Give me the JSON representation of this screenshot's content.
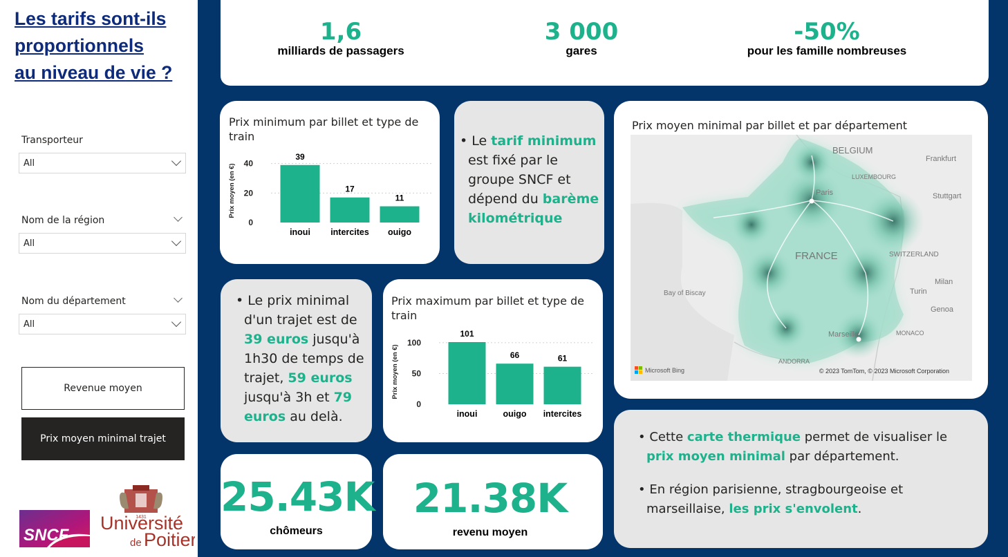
{
  "title_lines": [
    "Les tarifs sont-ils ",
    "proportionnels ",
    "au niveau de vie ?"
  ],
  "slicers": [
    {
      "label": "Transporteur",
      "value": "All"
    },
    {
      "label": "Nom de la région",
      "value": "All"
    },
    {
      "label": "Nom du département",
      "value": "All"
    }
  ],
  "buttons": {
    "revenue": "Revenue moyen",
    "prix": "Prix moyen minimal trajet"
  },
  "logos": {
    "sncf": "SNCF",
    "univ_line1": "Université",
    "univ_line2_a": "de",
    "univ_line2_b": "Poitiers",
    "univ_year": "1431"
  },
  "kpis": [
    {
      "value": "1,6",
      "label": "milliards de passagers"
    },
    {
      "value": "3 000",
      "label": "gares"
    },
    {
      "value": "-50%",
      "label": "pour les famille nombreuses"
    }
  ],
  "chart_min_title": "Prix minimum par billet et type de train",
  "chart_max_title": "Prix maximum par billet et type de train",
  "map": {
    "title": "Prix moyen minimal par billet et par département",
    "labels": {
      "belgium": "BELGIUM",
      "frankfurt": "Frankfurt",
      "luxembourg": "LUXEMBOURG",
      "paris": "Paris",
      "stuttgart": "Stuttgart",
      "france": "FRANCE",
      "switzerland": "SWITZERLAND",
      "bay": "Bay of Biscay",
      "milan": "Milan",
      "turin": "Turin",
      "genoa": "Genoa",
      "marseille": "Marseille",
      "monaco": "MONACO",
      "andorra": "ANDORRA"
    },
    "bing": "Microsoft Bing",
    "copyright": "© 2023 TomTom, © 2023 Microsoft Corporation"
  },
  "text1": {
    "a": "Le ",
    "b": "tarif minimum",
    "c": " est fixé par le groupe SNCF et dépend du ",
    "d": "barème kilométrique"
  },
  "text2": {
    "a": "Le prix minimal d'un trajet est de ",
    "b": "39 euros",
    "c": " jusqu'à 1h30 de temps de trajet, ",
    "d": "59 euros",
    "e": " jusqu'à 3h et ",
    "f": "79 euros",
    "g": " au delà."
  },
  "text3": {
    "a": "Cette ",
    "b": "carte thermique",
    "c": " permet de visualiser le ",
    "d": "prix moyen minimal",
    "e": " par département.",
    "f": "En région parisienne, stragbourgeoise  et marseillaise, ",
    "g": "les prix s'envolent",
    "h": "."
  },
  "big_kpis": [
    {
      "value": "25.43K",
      "label": "chômeurs"
    },
    {
      "value": "21.38K",
      "label": "revenu moyen"
    }
  ],
  "colors": {
    "accent": "#1db18c",
    "navy": "#03346a",
    "panel_grey": "#e6e6e6",
    "dark_button": "#252423"
  },
  "chart_data": [
    {
      "type": "bar",
      "title": "Prix minimum par billet et type de train",
      "categories": [
        "inoui",
        "intercites",
        "ouigo"
      ],
      "values": [
        39,
        17,
        11
      ],
      "ylabel": "Prix moyen (en €)",
      "yticks": [
        "0",
        "20",
        "40"
      ],
      "ylim": [
        0,
        45
      ],
      "grid": true
    },
    {
      "type": "bar",
      "title": "Prix maximum par billet et type de train",
      "categories": [
        "inoui",
        "ouigo",
        "intercites"
      ],
      "values": [
        101,
        66,
        61
      ],
      "ylabel": "Prix moyen (en €)",
      "yticks": [
        "0",
        "50",
        "100"
      ],
      "ylim": [
        0,
        110
      ],
      "grid": true
    }
  ]
}
